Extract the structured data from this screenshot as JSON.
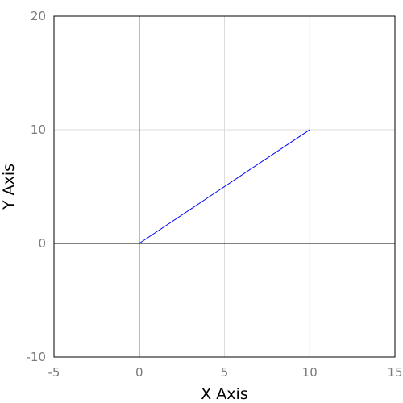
{
  "chart_data": {
    "type": "line",
    "title": "",
    "xlabel": "X Axis",
    "ylabel": "Y Axis",
    "xlim": [
      -5,
      15
    ],
    "ylim": [
      -10,
      20
    ],
    "x_ticks": [
      -5,
      0,
      5,
      10,
      15
    ],
    "y_ticks": [
      -10,
      0,
      10,
      20
    ],
    "x_tick_labels": [
      "-5",
      "0",
      "5",
      "10",
      "15"
    ],
    "y_tick_labels": [
      "-10",
      "0",
      "10",
      "20"
    ],
    "grid": true,
    "zero_lines": true,
    "legend": "none",
    "series": [
      {
        "color": "#0000ff",
        "x": [
          0,
          10
        ],
        "y": [
          0,
          10
        ]
      }
    ]
  }
}
